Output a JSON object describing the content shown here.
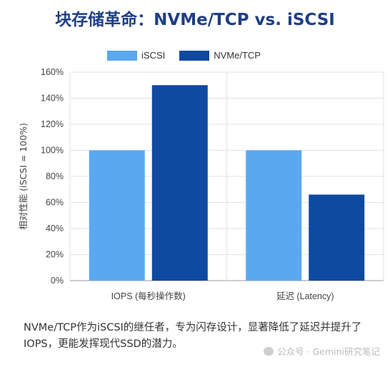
{
  "title": "块存储革命：NVMe/TCP vs. iSCSI",
  "caption": "NVMe/TCP作为iSCSI的继任者，专为闪存设计，显著降低了延迟并提升了IOPS，更能发挥现代SSD的潜力。",
  "watermark": "公众号 · Gemini研究笔记",
  "watermark_icon": "wechat-icon",
  "chart_data": {
    "type": "bar",
    "title": "块存储革命：NVMe/TCP vs. iSCSI",
    "categories": [
      "IOPS (每秒操作数)",
      "延迟 (Latency)"
    ],
    "series": [
      {
        "name": "iSCSI",
        "color": "#5aa8f0",
        "values": [
          100,
          100
        ]
      },
      {
        "name": "NVMe/TCP",
        "color": "#0f4aa0",
        "values": [
          150,
          66
        ]
      }
    ],
    "ylabel": "相对性能 (iSCSI = 100%)",
    "ylim": [
      0,
      160
    ],
    "yticks": [
      "0%",
      "20%",
      "40%",
      "60%",
      "80%",
      "100%",
      "120%",
      "140%",
      "160%"
    ],
    "grid": true,
    "legend": "top"
  }
}
